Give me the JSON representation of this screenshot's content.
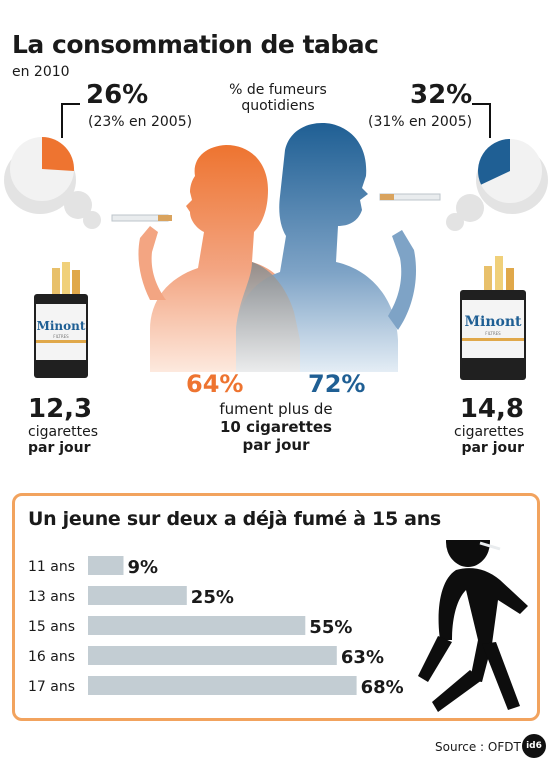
{
  "header": {
    "title": "La consommation de tabac",
    "subtitle": "en 2010"
  },
  "women": {
    "daily_pct": "26%",
    "daily_prev": "(23% en 2005)",
    "heavy_pct": "64%",
    "cigs_per_day": "12,3",
    "cigs_label": "cigarettes",
    "cigs_unit": "par jour",
    "color": "#ee7430",
    "pie_fraction": 0.26
  },
  "men": {
    "daily_pct": "32%",
    "daily_prev": "(31% en 2005)",
    "heavy_pct": "72%",
    "cigs_per_day": "14,8",
    "cigs_label": "cigarettes",
    "cigs_unit": "par jour",
    "color": "#1f5f94",
    "pie_fraction": 0.32
  },
  "center": {
    "label_line1": "% de fumeurs",
    "label_line2": "quotidiens",
    "heavy_line1": "fument plus de",
    "heavy_line2": "10 cigarettes",
    "heavy_line3": "par jour"
  },
  "pack": {
    "brand": "Minont",
    "sub": "FILTRES"
  },
  "chart_data": {
    "type": "bar",
    "title": "Un jeune sur deux a déjà fumé à 15 ans",
    "categories": [
      "11 ans",
      "13 ans",
      "15 ans",
      "16 ans",
      "17 ans"
    ],
    "values": [
      9,
      25,
      55,
      63,
      68
    ],
    "value_labels": [
      "9%",
      "25%",
      "55%",
      "63%",
      "68%"
    ],
    "xlim": [
      0,
      100
    ],
    "bar_color": "#c3cdd3"
  },
  "footer": {
    "source": "Source : OFDT",
    "logo": "id6"
  }
}
